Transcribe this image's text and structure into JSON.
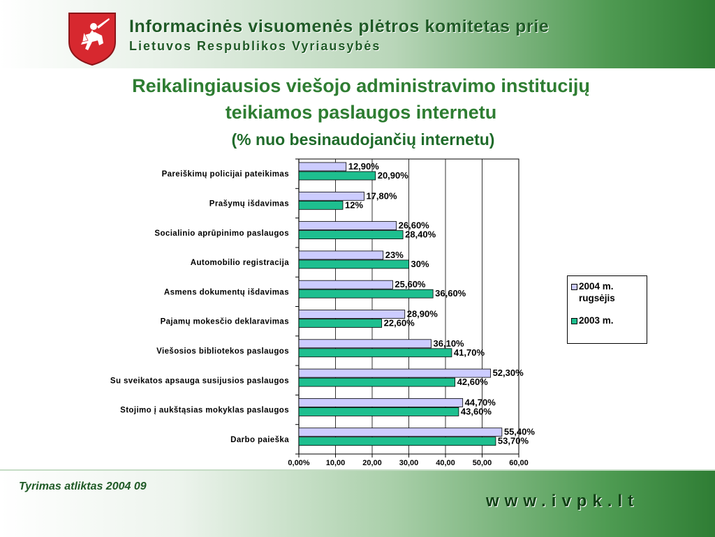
{
  "header": {
    "org_line1": "Informacinės visuomenės plėtros komitetas prie",
    "org_line2": "Lietuvos Respublikos Vyriausybės",
    "crest_icon": "lithuanian-vytis-crest-icon"
  },
  "slide": {
    "title_line1": "Reikalingiausios viešojo administravimo institucijų",
    "title_line2": "teikiamos paslaugos internetu",
    "subtitle": "(% nuo besinaudojančių internetu)"
  },
  "footer": {
    "note": "Tyrimas atliktas 2004 09",
    "website": "www.ivpk.lt"
  },
  "colors": {
    "series_2004": "#ccccff",
    "series_2003": "#1ebf8f",
    "title_green": "#2e7d32"
  },
  "chart_data": {
    "type": "bar",
    "orientation": "horizontal",
    "categories": [
      "Pareiškimų policijai pateikimas",
      "Prašymų išdavimas",
      "Socialinio aprūpinimo paslaugos",
      "Automobilio registracija",
      "Asmens dokumentų išdavimas",
      "Pajamų mokesčio deklaravimas",
      "Viešosios bibliotekos paslaugos",
      "Su sveikatos apsauga susijusios paslaugos",
      "Stojimo į aukštąsias mokyklas paslaugos",
      "Darbo paieška"
    ],
    "series": [
      {
        "name": "2004 m. rugsėjis",
        "legend_lines": [
          "2004 m.",
          "rugsėjis"
        ],
        "values": [
          12.9,
          17.8,
          26.6,
          23,
          25.6,
          28.9,
          36.1,
          52.3,
          44.7,
          55.4
        ],
        "labels": [
          "12,90%",
          "17,80%",
          "26,60%",
          "23%",
          "25,60%",
          "28,90%",
          "36,10%",
          "52,30%",
          "44,70%",
          "55,40%"
        ]
      },
      {
        "name": "2003 m.",
        "legend_lines": [
          "2003 m."
        ],
        "values": [
          20.9,
          12,
          28.4,
          30,
          36.6,
          22.6,
          41.7,
          42.6,
          43.6,
          53.7
        ],
        "labels": [
          "20,90%",
          "12%",
          "28,40%",
          "30%",
          "36,60%",
          "22,60%",
          "41,70%",
          "42,60%",
          "43,60%",
          "53,70%"
        ]
      }
    ],
    "xlim": [
      0,
      60
    ],
    "xticks": [
      {
        "value": 0,
        "label": "0,00%"
      },
      {
        "value": 10,
        "label": "10,00 %"
      },
      {
        "value": 20,
        "label": "20,00 %"
      },
      {
        "value": 30,
        "label": "30,00 %"
      },
      {
        "value": 40,
        "label": "40,00 %"
      },
      {
        "value": 50,
        "label": "50,00 %"
      },
      {
        "value": 60,
        "label": "60,00 %"
      }
    ],
    "grid": "vertical",
    "legend": "right",
    "title": "",
    "xlabel": "",
    "ylabel": ""
  }
}
